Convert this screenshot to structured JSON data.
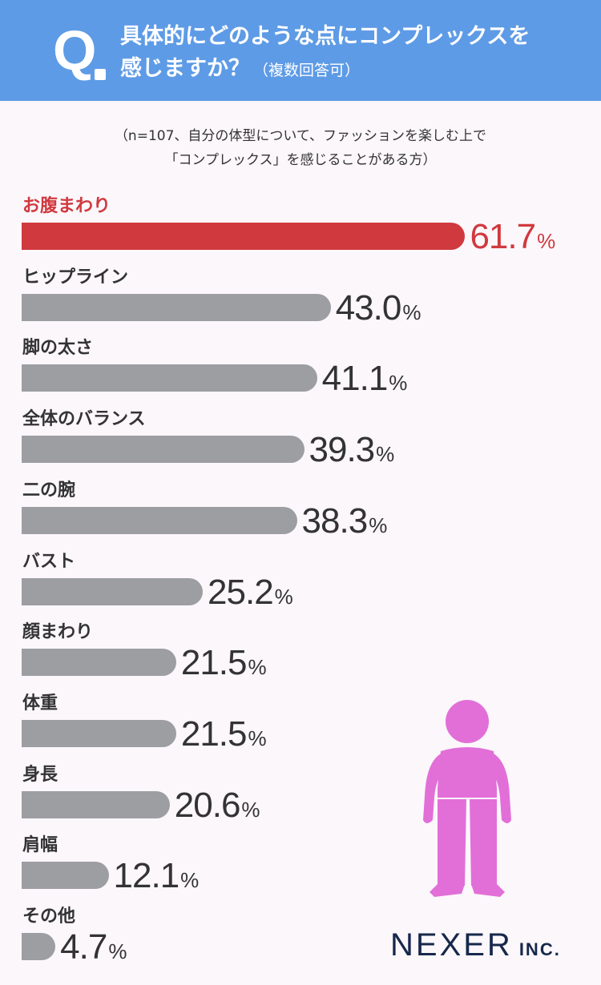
{
  "header": {
    "q_mark": "Q",
    "title_line1": "具体的にどのような点にコンプレックスを",
    "title_line2": "感じますか？",
    "title_note": "（複数回答可）"
  },
  "subtitle": {
    "line1": "（n=107、自分の体型について、ファッションを楽しむ上で",
    "line2": "「コンプレックス」を感じることがある方）"
  },
  "chart_data": {
    "type": "bar",
    "orientation": "horizontal",
    "unit": "%",
    "categories": [
      "お腹まわり",
      "ヒップライン",
      "脚の太さ",
      "全体のバランス",
      "二の腕",
      "バスト",
      "顔まわり",
      "体重",
      "身長",
      "肩幅",
      "その他"
    ],
    "values": [
      61.7,
      43.0,
      41.1,
      39.3,
      38.3,
      25.2,
      21.5,
      21.5,
      20.6,
      12.1,
      4.7
    ],
    "value_labels": [
      "61.7",
      "43.0",
      "41.1",
      "39.3",
      "38.3",
      "25.2",
      "21.5",
      "21.5",
      "20.6",
      "12.1",
      "4.7"
    ],
    "highlight_index": 0,
    "colors": {
      "highlight": "#d0393e",
      "default": "#9d9ea2"
    }
  },
  "figure": {
    "icon": "person-figure-icon",
    "color": "#e26fd8"
  },
  "logo": {
    "main": "NEXER",
    "sub": "INC."
  },
  "colors": {
    "header": "#5e9be6",
    "background": "#fbf7fb",
    "logo": "#17284b"
  }
}
